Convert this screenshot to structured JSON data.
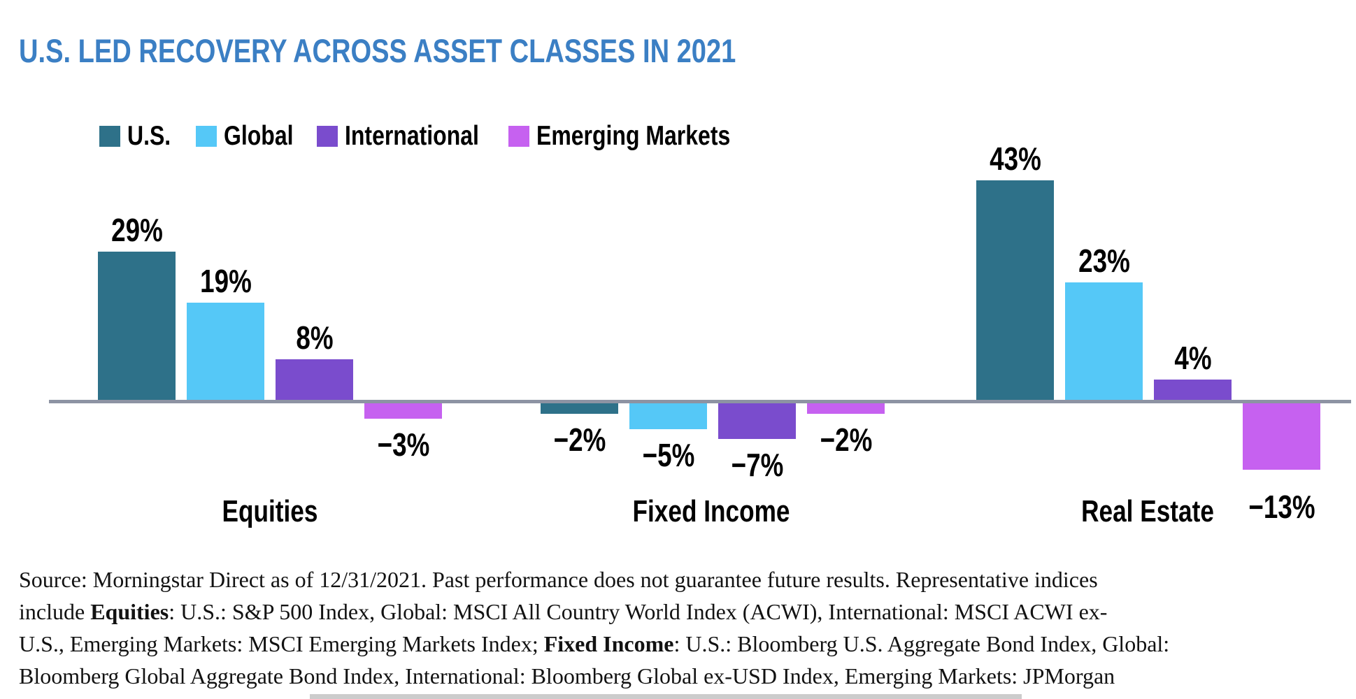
{
  "title": "U.S. LED RECOVERY ACROSS ASSET CLASSES IN 2021",
  "colors": {
    "title_blue": "#3b7fc4",
    "us_teal": "#2e7189",
    "global_cyan": "#55c8f7",
    "international_purple": "#7a4ccd",
    "emerging_magenta": "#c661f0",
    "axis_gray": "#8d93a3",
    "label_black": "#000000"
  },
  "chart_data": {
    "type": "bar",
    "title": "U.S. LED RECOVERY ACROSS ASSET CLASSES IN 2021",
    "categories": [
      "Equities",
      "Fixed Income",
      "Real Estate"
    ],
    "series": [
      {
        "name": "U.S.",
        "color": "#2e7189",
        "values": [
          29,
          -2,
          43
        ],
        "labels": [
          "29%",
          "−2%",
          "43%"
        ]
      },
      {
        "name": "Global",
        "color": "#55c8f7",
        "values": [
          19,
          -5,
          23
        ],
        "labels": [
          "19%",
          "−5%",
          "23%"
        ]
      },
      {
        "name": "International",
        "color": "#7a4ccd",
        "values": [
          8,
          -7,
          4
        ],
        "labels": [
          "8%",
          "−7%",
          "4%"
        ]
      },
      {
        "name": "Emerging Markets",
        "color": "#c661f0",
        "values": [
          -3,
          -2,
          -13
        ],
        "labels": [
          "−3%",
          "−2%",
          "−13%"
        ]
      }
    ],
    "ylim": [
      -15,
      45
    ],
    "grid": false,
    "axis": "zero-baseline-only",
    "legend_position": "top-left",
    "value_labels_shown": true
  },
  "source": {
    "lines": [
      [
        {
          "t": "Source: Morningstar Direct as of 12/31/2021. Past performance does not guarantee future results. Representative indices"
        }
      ],
      [
        {
          "t": "include "
        },
        {
          "t": "Equities",
          "b": true
        },
        {
          "t": ": U.S.: S&P 500 Index, Global: MSCI All Country World Index (ACWI), International: MSCI ACWI ex-"
        }
      ],
      [
        {
          "t": "U.S., Emerging Markets: MSCI Emerging Markets Index; "
        },
        {
          "t": "Fixed Income",
          "b": true
        },
        {
          "t": ": U.S.: Bloomberg U.S. Aggregate Bond Index, Global:"
        }
      ],
      [
        {
          "t": "Bloomberg Global Aggregate Bond Index, International: Bloomberg Global ex-USD Index, Emerging Markets: JPMorgan"
        }
      ]
    ]
  }
}
